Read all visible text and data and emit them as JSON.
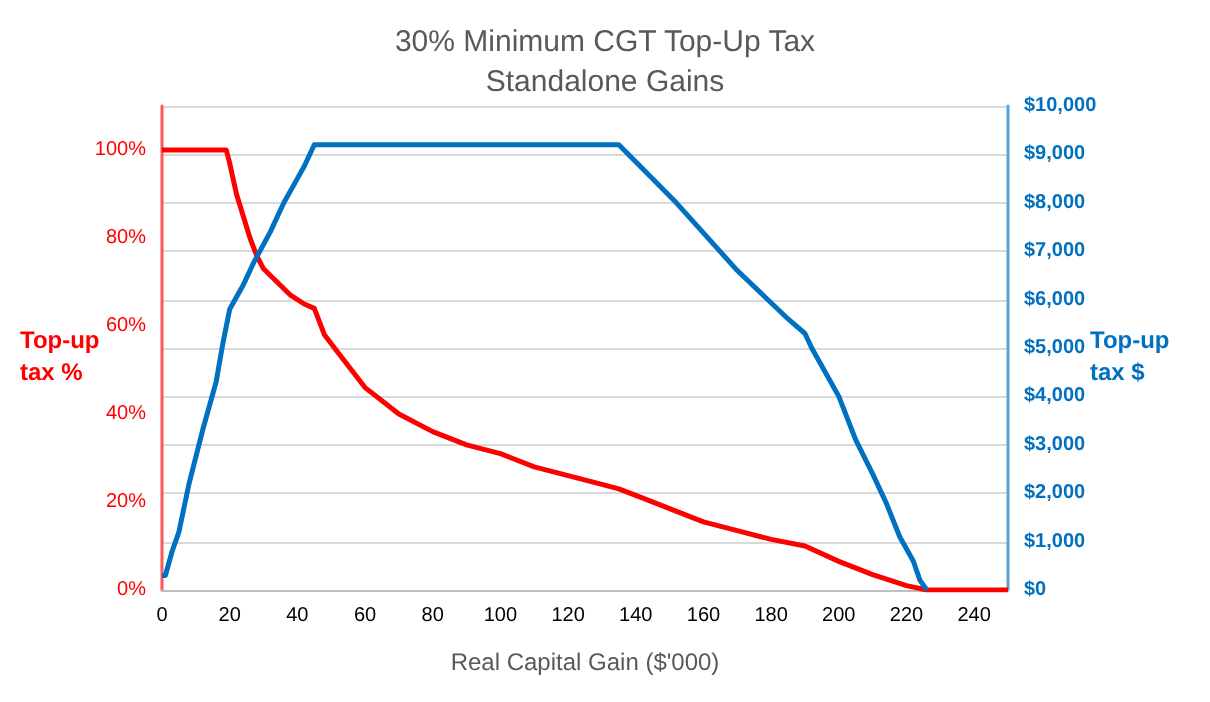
{
  "chart_data": {
    "type": "line",
    "title": "30% Minimum CGT Top-Up Tax\nStandalone Gains",
    "xlabel": "Real Capital Gain ($'000)",
    "ylabel": "Top-up tax %",
    "y2label": "Top-up tax $",
    "xlim": [
      0,
      250
    ],
    "xticks": [
      0,
      20,
      40,
      60,
      80,
      100,
      120,
      140,
      160,
      180,
      200,
      220,
      240
    ],
    "ylim": [
      0,
      110
    ],
    "yticks": [
      {
        "value": 0,
        "label": "0%"
      },
      {
        "value": 20,
        "label": "20%"
      },
      {
        "value": 40,
        "label": "40%"
      },
      {
        "value": 60,
        "label": "60%"
      },
      {
        "value": 80,
        "label": "80%"
      },
      {
        "value": 100,
        "label": "100%"
      }
    ],
    "y2lim": [
      0,
      10000
    ],
    "y2ticks": [
      {
        "value": 0,
        "label": "$0"
      },
      {
        "value": 1000,
        "label": "$1,000"
      },
      {
        "value": 2000,
        "label": "$2,000"
      },
      {
        "value": 3000,
        "label": "$3,000"
      },
      {
        "value": 4000,
        "label": "$4,000"
      },
      {
        "value": 5000,
        "label": "$5,000"
      },
      {
        "value": 6000,
        "label": "$6,000"
      },
      {
        "value": 7000,
        "label": "$7,000"
      },
      {
        "value": 8000,
        "label": "$8,000"
      },
      {
        "value": 9000,
        "label": "$9,000"
      },
      {
        "value": 10000,
        "label": "$10,000"
      }
    ],
    "grid": "y",
    "marker": "none",
    "series": [
      {
        "color": "#ff0000",
        "x": [
          0,
          19,
          20,
          22,
          24,
          26,
          28,
          30,
          34,
          38,
          42,
          45,
          46,
          48,
          52,
          56,
          60,
          65,
          70,
          80,
          90,
          100,
          110,
          120,
          130,
          135,
          140,
          150,
          160,
          170,
          180,
          190,
          200,
          210,
          220,
          226,
          250
        ],
        "values": [
          100,
          100,
          97,
          90,
          85,
          80,
          76,
          73,
          70,
          67,
          65,
          64,
          62,
          58,
          54,
          50,
          46,
          43,
          40,
          36,
          33,
          31,
          28,
          26,
          24,
          23,
          21.5,
          18.5,
          15.5,
          13.5,
          11.5,
          10,
          6.5,
          3.5,
          1,
          0,
          0
        ]
      },
      {
        "color": "#0070c0",
        "axis": "y2",
        "x": [
          0,
          1,
          3,
          5,
          8,
          12,
          16,
          18,
          20,
          24,
          27,
          32,
          36,
          40,
          42,
          45,
          135,
          152,
          170,
          185,
          190,
          192,
          196,
          200,
          205,
          210,
          214,
          218,
          222,
          224,
          226
        ],
        "values": [
          300,
          300,
          800,
          1200,
          2200,
          3300,
          4300,
          5100,
          5800,
          6300,
          6750,
          7400,
          8000,
          8500,
          8750,
          9200,
          9200,
          8000,
          6600,
          5600,
          5300,
          5000,
          4500,
          4000,
          3100,
          2400,
          1800,
          1100,
          600,
          200,
          0
        ]
      }
    ]
  }
}
